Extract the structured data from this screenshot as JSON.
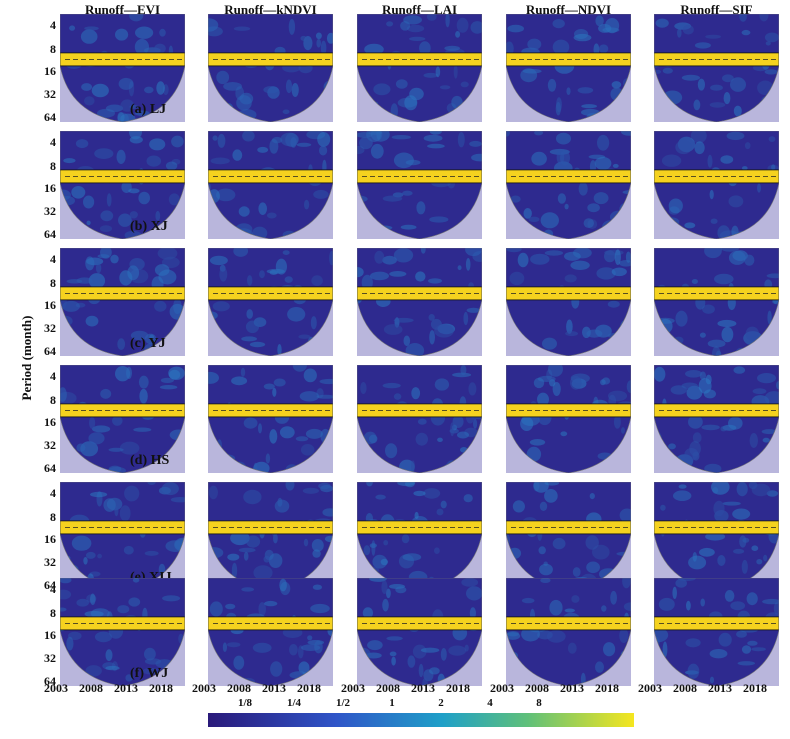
{
  "chart_data": {
    "type": "heatmap",
    "subtype": "wavelet coherence grid",
    "columns": [
      "Runoff—EVI",
      "Runoff—kNDVI",
      "Runoff—LAI",
      "Runoff—NDVI",
      "Runoff—SIF"
    ],
    "rows": [
      "(a) LJ",
      "(b) XJ",
      "(c) YJ",
      "(d) HS",
      "(e) XIJ",
      "(f) WJ"
    ],
    "ylabel": "Period  (month)",
    "xlabel": "",
    "y_ticks": [
      "4",
      "8",
      "16",
      "32",
      "64"
    ],
    "x_ticks": [
      "2003",
      "2008",
      "2013",
      "2018"
    ],
    "colorbar_ticks": [
      "1/8",
      "1/4",
      "1/2",
      "1",
      "2",
      "4",
      "8"
    ],
    "dominant_period_band_months": [
      8,
      16
    ],
    "colors": {
      "low": "#2e2a8f",
      "mid": "#2a8fd0",
      "high": "#f5d21f",
      "cone_outside": "#b9b6dc"
    }
  }
}
